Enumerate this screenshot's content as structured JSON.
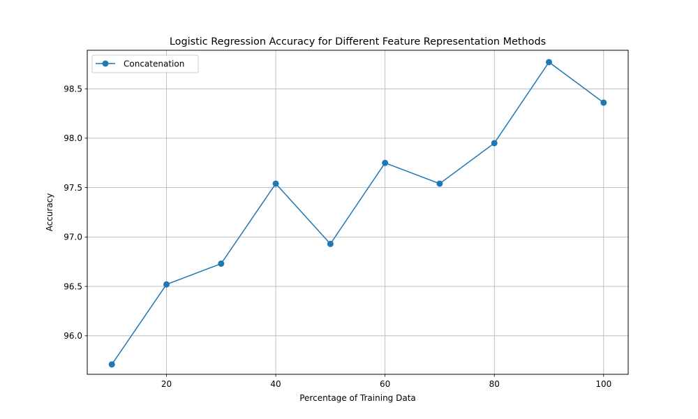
{
  "chart_data": {
    "type": "line",
    "title": "Logistic Regression Accuracy for Different Feature Representation Methods",
    "xlabel": "Percentage of Training Data",
    "ylabel": "Accuracy",
    "xlim": [
      5.5,
      104.5
    ],
    "ylim": [
      95.61,
      98.89
    ],
    "x_ticks": [
      20,
      40,
      60,
      80,
      100
    ],
    "y_ticks": [
      96.0,
      96.5,
      97.0,
      97.5,
      98.0,
      98.5
    ],
    "x_tick_labels": [
      "20",
      "40",
      "60",
      "80",
      "100"
    ],
    "y_tick_labels": [
      "96.0",
      "96.5",
      "97.0",
      "97.5",
      "98.0",
      "98.5"
    ],
    "grid": true,
    "legend": {
      "placement": "upper-left",
      "entries": [
        "Concatenation"
      ]
    },
    "series": [
      {
        "name": "Concatenation",
        "color": "#1f77b4",
        "marker": "circle",
        "x": [
          10,
          20,
          30,
          40,
          50,
          60,
          70,
          80,
          90,
          100
        ],
        "y": [
          95.71,
          96.52,
          96.73,
          97.54,
          96.93,
          97.75,
          97.54,
          97.95,
          98.77,
          98.36
        ]
      }
    ]
  }
}
